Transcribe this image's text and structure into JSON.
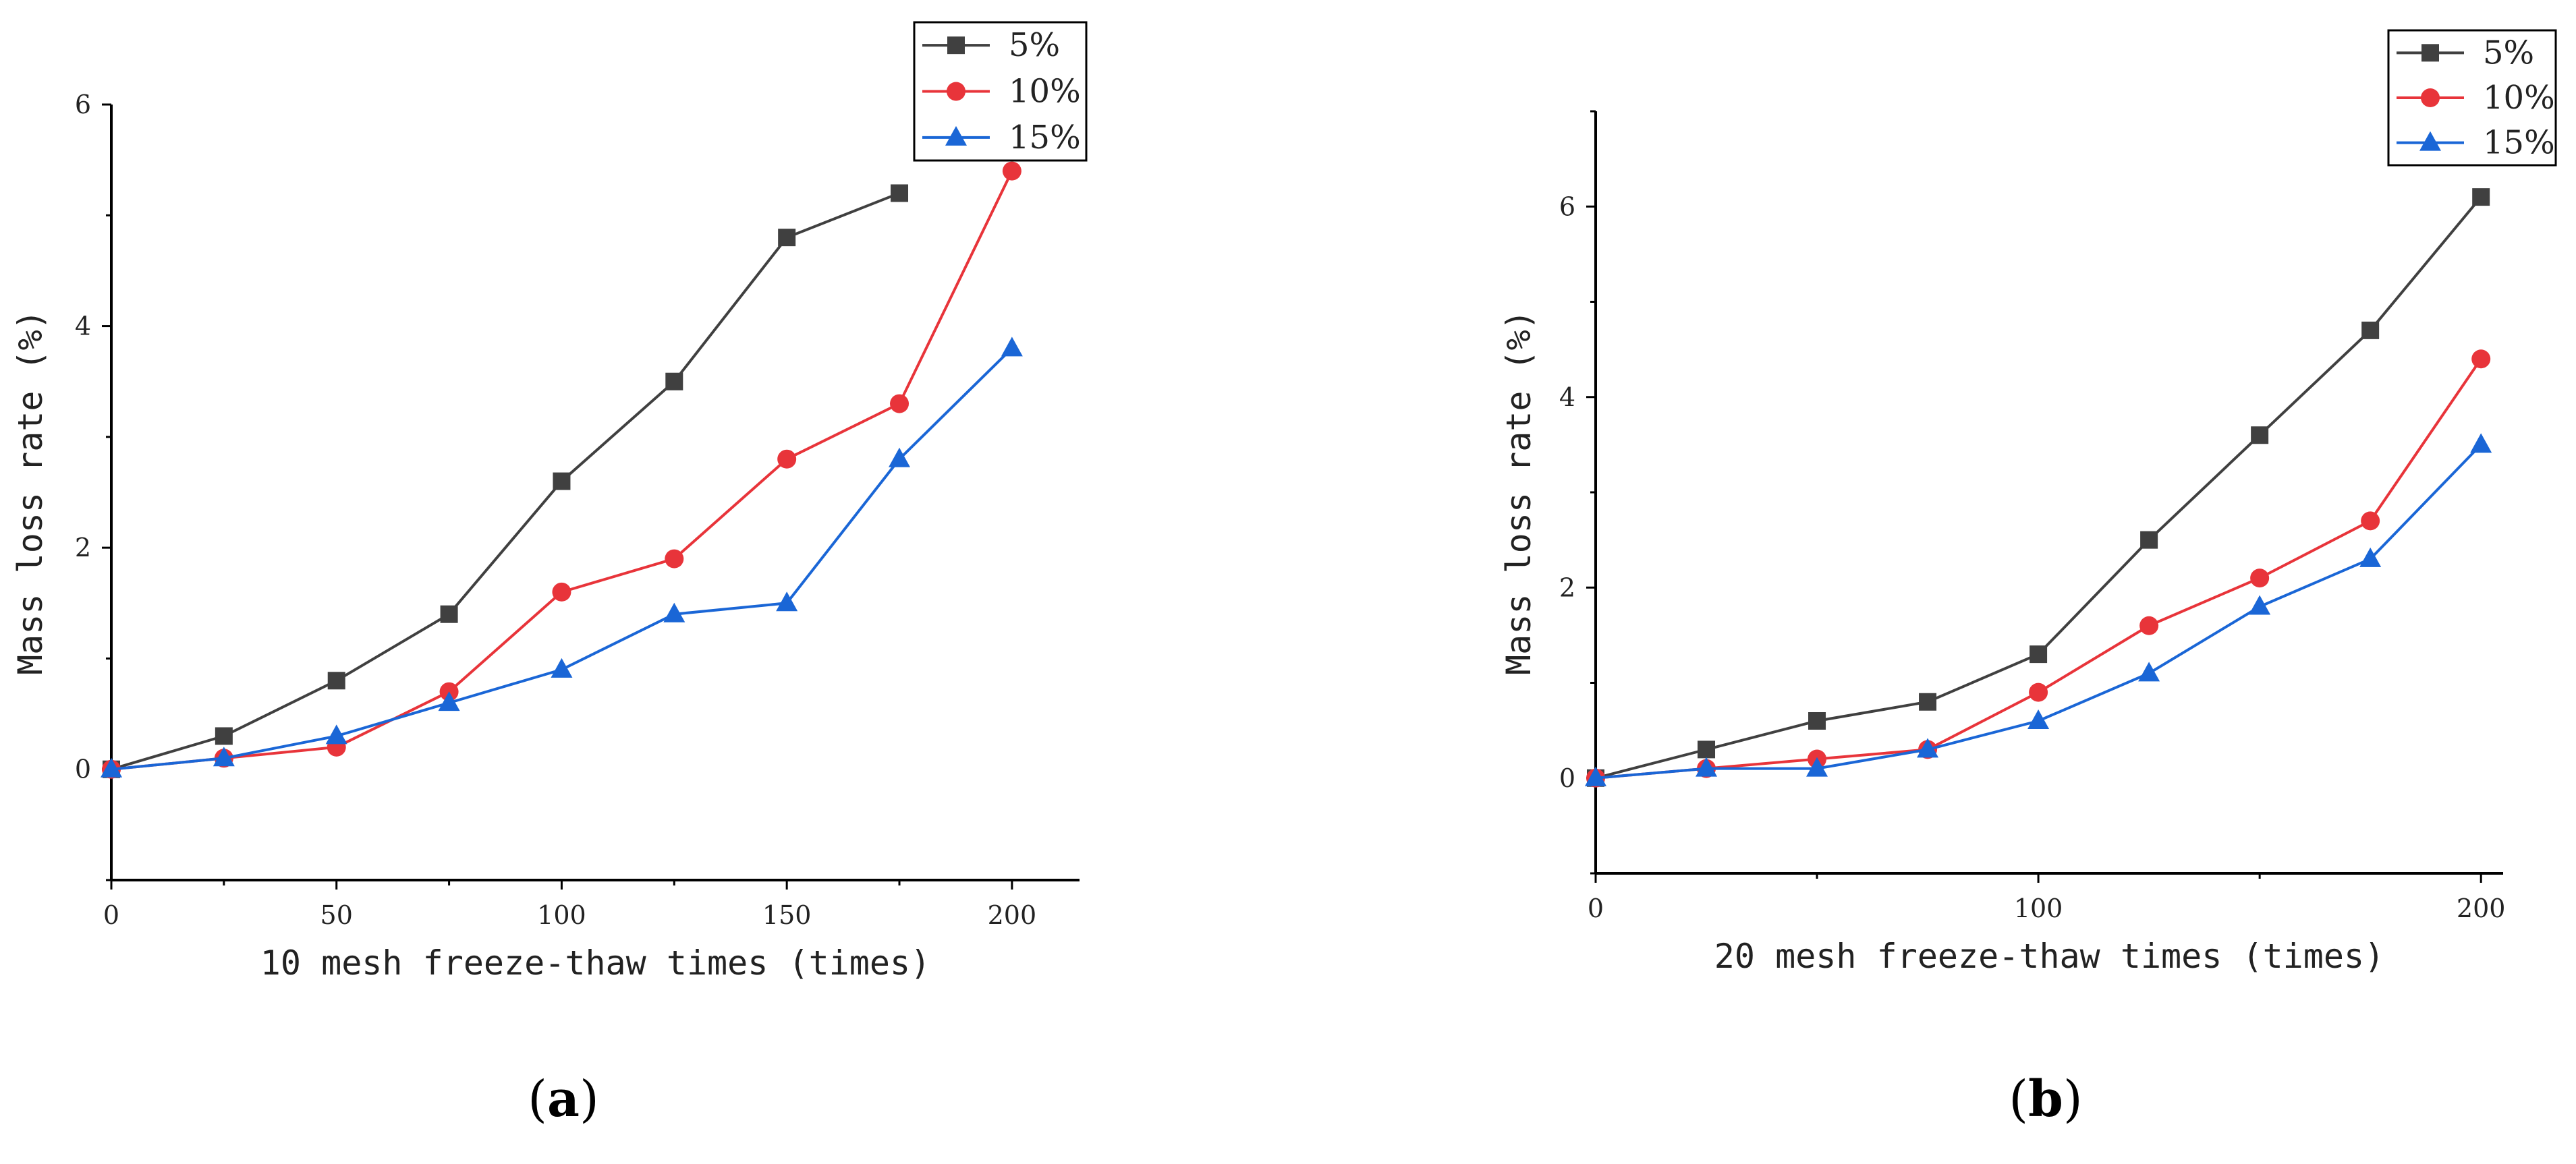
{
  "colors": {
    "s5": "#404040",
    "s10": "#e8343a",
    "s15": "#1a66d6",
    "axis": "#000000"
  },
  "charts": [
    {
      "panel_label_parts": [
        "(",
        "a",
        ")"
      ],
      "chart_data": {
        "type": "line",
        "xlabel": "10 mesh freeze-thaw times (times)",
        "ylabel": "Mass loss rate (%)",
        "xlim": [
          0,
          215
        ],
        "ylim": [
          -1,
          6
        ],
        "xticks": [
          0,
          50,
          100,
          150,
          200
        ],
        "yticks": [
          0,
          2,
          4,
          6
        ],
        "legend_position": "top-right",
        "series": [
          {
            "name": "5%",
            "marker": "square",
            "color": "#404040",
            "x": [
              0,
              25,
              50,
              75,
              100,
              125,
              150,
              175
            ],
            "y": [
              0,
              0.3,
              0.8,
              1.4,
              2.6,
              3.5,
              4.8,
              5.2
            ]
          },
          {
            "name": "10%",
            "marker": "circle",
            "color": "#e8343a",
            "x": [
              0,
              25,
              50,
              75,
              100,
              125,
              150,
              175,
              200
            ],
            "y": [
              0,
              0.1,
              0.2,
              0.7,
              1.6,
              1.9,
              2.8,
              3.3,
              5.4
            ]
          },
          {
            "name": "15%",
            "marker": "triangle",
            "color": "#1a66d6",
            "x": [
              0,
              25,
              50,
              75,
              100,
              125,
              150,
              175,
              200
            ],
            "y": [
              0,
              0.1,
              0.3,
              0.6,
              0.9,
              1.4,
              1.5,
              2.8,
              3.8
            ]
          }
        ]
      }
    },
    {
      "panel_label_parts": [
        "(",
        "b",
        ")"
      ],
      "chart_data": {
        "type": "line",
        "xlabel": "20 mesh freeze-thaw times (times)",
        "ylabel": "Mass loss rate (%)",
        "xlim": [
          0,
          205
        ],
        "ylim": [
          -1,
          7
        ],
        "xticks": [
          0,
          100,
          200
        ],
        "yticks": [
          0,
          2,
          4,
          6
        ],
        "legend_position": "top-right",
        "series": [
          {
            "name": "5%",
            "marker": "square",
            "color": "#404040",
            "x": [
              0,
              25,
              50,
              75,
              100,
              125,
              150,
              175,
              200
            ],
            "y": [
              0,
              0.3,
              0.6,
              0.8,
              1.3,
              2.5,
              3.6,
              4.7,
              6.1
            ]
          },
          {
            "name": "10%",
            "marker": "circle",
            "color": "#e8343a",
            "x": [
              0,
              25,
              50,
              75,
              100,
              125,
              150,
              175,
              200
            ],
            "y": [
              0,
              0.1,
              0.2,
              0.3,
              0.9,
              1.6,
              2.1,
              2.7,
              4.4
            ]
          },
          {
            "name": "15%",
            "marker": "triangle",
            "color": "#1a66d6",
            "x": [
              0,
              25,
              50,
              75,
              100,
              125,
              150,
              175,
              200
            ],
            "y": [
              0,
              0.1,
              0.1,
              0.3,
              0.6,
              1.1,
              1.8,
              2.3,
              3.5
            ]
          }
        ]
      }
    }
  ]
}
